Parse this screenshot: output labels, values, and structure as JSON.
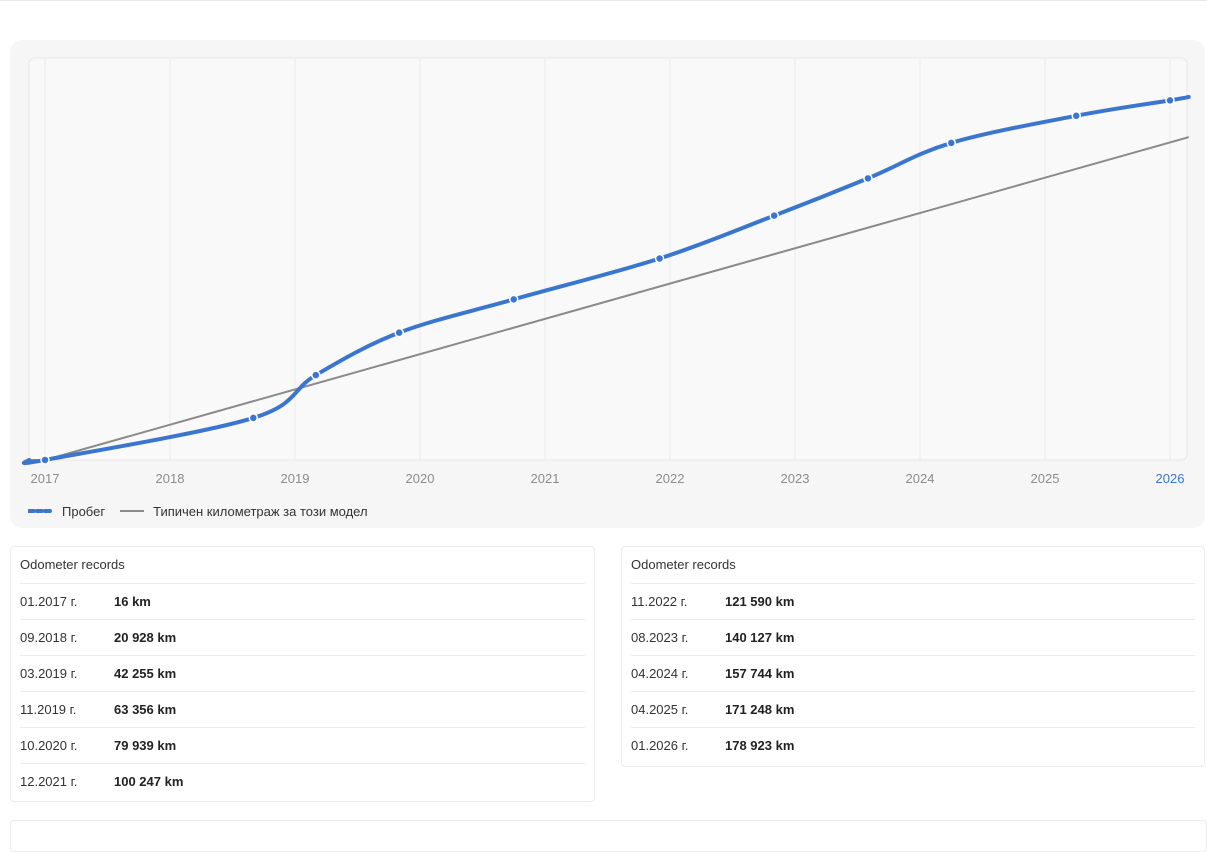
{
  "chart_data": {
    "type": "line",
    "x_ticks": [
      "2017",
      "2018",
      "2019",
      "2020",
      "2021",
      "2022",
      "2023",
      "2024",
      "2025",
      "2026"
    ],
    "highlighted_tick": "2026",
    "series": [
      {
        "name": "Пробег",
        "color": "#3a76d0",
        "markers": true,
        "points": [
          {
            "x": "01.2017",
            "y": 16
          },
          {
            "x": "09.2018",
            "y": 20928
          },
          {
            "x": "03.2019",
            "y": 42255
          },
          {
            "x": "11.2019",
            "y": 63356
          },
          {
            "x": "10.2020",
            "y": 79939
          },
          {
            "x": "12.2021",
            "y": 100247
          },
          {
            "x": "11.2022",
            "y": 121590
          },
          {
            "x": "08.2023",
            "y": 140127
          },
          {
            "x": "04.2024",
            "y": 157744
          },
          {
            "x": "04.2025",
            "y": 171248
          },
          {
            "x": "01.2026",
            "y": 178923
          }
        ]
      },
      {
        "name": "Типичен километраж за този модел",
        "color": "#8a8a8a",
        "markers": false,
        "points": [
          {
            "x": "01.2017",
            "y": 0
          },
          {
            "x": "01.2026",
            "y": 158000
          }
        ]
      }
    ],
    "grid": true,
    "legend": "bottom-left",
    "y_axis_labels_visible": false
  },
  "records_left": {
    "title": "Odometer records",
    "rows": [
      {
        "date": "01.2017 г.",
        "value": "16 km"
      },
      {
        "date": "09.2018 г.",
        "value": "20 928 km"
      },
      {
        "date": "03.2019 г.",
        "value": "42 255 km"
      },
      {
        "date": "11.2019 г.",
        "value": "63 356 km"
      },
      {
        "date": "10.2020 г.",
        "value": "79 939 km"
      },
      {
        "date": "12.2021 г.",
        "value": "100 247 km"
      }
    ]
  },
  "records_right": {
    "title": "Odometer records",
    "rows": [
      {
        "date": "11.2022 г.",
        "value": "121 590 km"
      },
      {
        "date": "08.2023 г.",
        "value": "140 127 km"
      },
      {
        "date": "04.2024 г.",
        "value": "157 744 km"
      },
      {
        "date": "04.2025 г.",
        "value": "171 248 km"
      },
      {
        "date": "01.2026 г.",
        "value": "178 923 km"
      }
    ]
  }
}
